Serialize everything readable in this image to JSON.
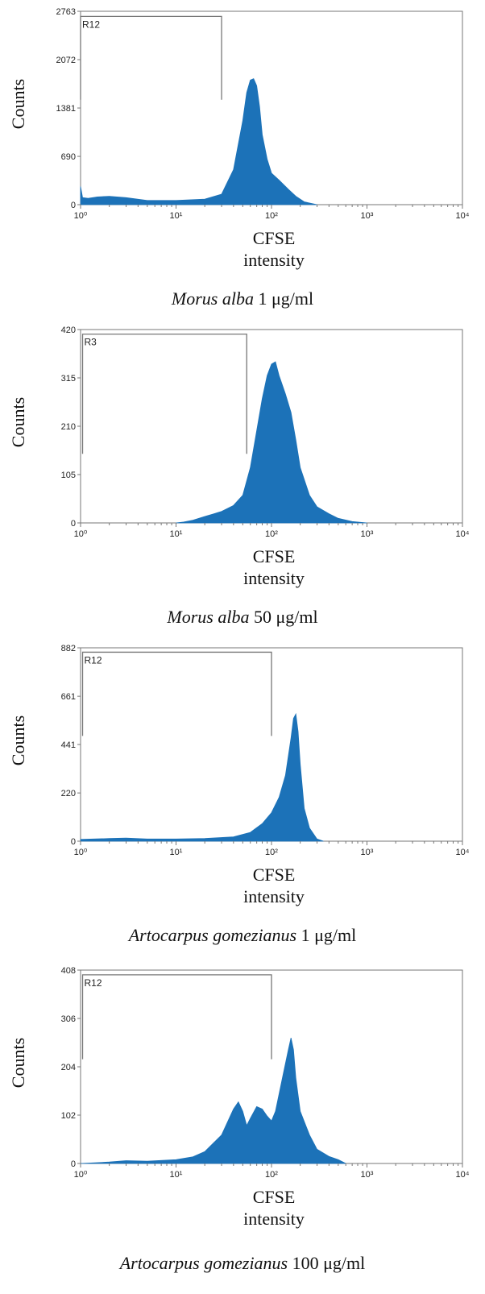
{
  "colors": {
    "fill": "#1c72b8",
    "axis": "#777777",
    "gate": "#777777",
    "text": "#111111"
  },
  "chart_data": [
    {
      "type": "area",
      "ylabel": "Counts",
      "xlabel_line1": "CFSE",
      "xlabel_line2": "intensity",
      "caption_species": "Morus alba",
      "caption_dose": " 1 μg/ml",
      "x_scale": "log",
      "xlim": [
        1,
        10000
      ],
      "ylim": [
        0,
        2763
      ],
      "yticks": [
        "2763",
        "2072",
        "1381",
        "690",
        "0"
      ],
      "ytick_values": [
        2763,
        2072,
        1381,
        690,
        0
      ],
      "xticks": [
        "10⁰",
        "10¹",
        "10²",
        "10³",
        "10⁴"
      ],
      "gate": {
        "label": "R12",
        "x_start": 1,
        "x_end": 30,
        "y_level": 2690,
        "y_bottom": 1500
      },
      "x": [
        1,
        1.05,
        1.2,
        1.5,
        2,
        3,
        5,
        10,
        20,
        30,
        40,
        50,
        55,
        60,
        65,
        70,
        75,
        80,
        90,
        100,
        120,
        150,
        180,
        220,
        300
      ],
      "values": [
        260,
        100,
        90,
        110,
        120,
        100,
        60,
        60,
        80,
        150,
        500,
        1200,
        1600,
        1780,
        1800,
        1700,
        1400,
        1000,
        650,
        450,
        350,
        220,
        120,
        40,
        0
      ]
    },
    {
      "type": "area",
      "ylabel": "Counts",
      "xlabel_line1": "CFSE",
      "xlabel_line2": "intensity",
      "caption_species": "Morus alba",
      "caption_dose": " 50 μg/ml",
      "x_scale": "log",
      "xlim": [
        1,
        10000
      ],
      "ylim": [
        0,
        420
      ],
      "yticks": [
        "420",
        "315",
        "210",
        "105",
        "0"
      ],
      "ytick_values": [
        420,
        315,
        210,
        105,
        0
      ],
      "xticks": [
        "10⁰",
        "10¹",
        "10²",
        "10³",
        "10⁴"
      ],
      "gate": {
        "label": "R3",
        "x_start": 1.05,
        "x_end": 55,
        "y_level": 410,
        "y_bottom": 150
      },
      "x": [
        10,
        12,
        15,
        20,
        25,
        30,
        40,
        50,
        60,
        70,
        80,
        90,
        100,
        110,
        120,
        140,
        160,
        180,
        200,
        250,
        300,
        400,
        500,
        700,
        1000
      ],
      "values": [
        0,
        2,
        6,
        14,
        20,
        25,
        38,
        60,
        120,
        200,
        270,
        320,
        345,
        350,
        320,
        280,
        240,
        180,
        120,
        60,
        35,
        20,
        10,
        3,
        0
      ]
    },
    {
      "type": "area",
      "ylabel": "Counts",
      "xlabel_line1": "CFSE",
      "xlabel_line2": "intensity",
      "caption_species": "Artocarpus gomezianus",
      "caption_dose": " 1 μg/ml",
      "x_scale": "log",
      "xlim": [
        1,
        10000
      ],
      "ylim": [
        0,
        882
      ],
      "yticks": [
        "882",
        "661",
        "441",
        "220",
        "0"
      ],
      "ytick_values": [
        882,
        661,
        441,
        220,
        0
      ],
      "xticks": [
        "10⁰",
        "10¹",
        "10²",
        "10³",
        "10⁴"
      ],
      "gate": {
        "label": "R12",
        "x_start": 1.05,
        "x_end": 100,
        "y_level": 862,
        "y_bottom": 480
      },
      "x": [
        1,
        2,
        3,
        5,
        10,
        20,
        40,
        60,
        80,
        100,
        120,
        140,
        160,
        170,
        180,
        190,
        200,
        220,
        250,
        300,
        350
      ],
      "values": [
        8,
        12,
        14,
        10,
        10,
        12,
        20,
        40,
        80,
        130,
        200,
        300,
        470,
        560,
        580,
        500,
        350,
        150,
        60,
        10,
        0
      ]
    },
    {
      "type": "area",
      "ylabel": "Counts",
      "xlabel_line1": "CFSE",
      "xlabel_line2": "intensity",
      "caption_species": "Artocarpus gomezianus",
      "caption_dose": " 100 μg/ml",
      "x_scale": "log",
      "xlim": [
        1,
        10000
      ],
      "ylim": [
        0,
        408
      ],
      "yticks": [
        "408",
        "306",
        "204",
        "102",
        "0"
      ],
      "ytick_values": [
        408,
        306,
        204,
        102,
        0
      ],
      "xticks": [
        "10⁰",
        "10¹",
        "10²",
        "10³",
        "10⁴"
      ],
      "gate": {
        "label": "R12",
        "x_start": 1.05,
        "x_end": 100,
        "y_level": 398,
        "y_bottom": 220
      },
      "x": [
        1,
        2,
        3,
        5,
        10,
        15,
        20,
        30,
        40,
        45,
        50,
        55,
        60,
        70,
        80,
        90,
        100,
        110,
        130,
        150,
        160,
        170,
        180,
        200,
        250,
        300,
        400,
        500,
        600
      ],
      "values": [
        0,
        3,
        6,
        5,
        8,
        14,
        25,
        60,
        115,
        130,
        110,
        80,
        95,
        120,
        115,
        100,
        90,
        110,
        180,
        240,
        265,
        240,
        180,
        110,
        60,
        30,
        15,
        8,
        0
      ]
    }
  ]
}
